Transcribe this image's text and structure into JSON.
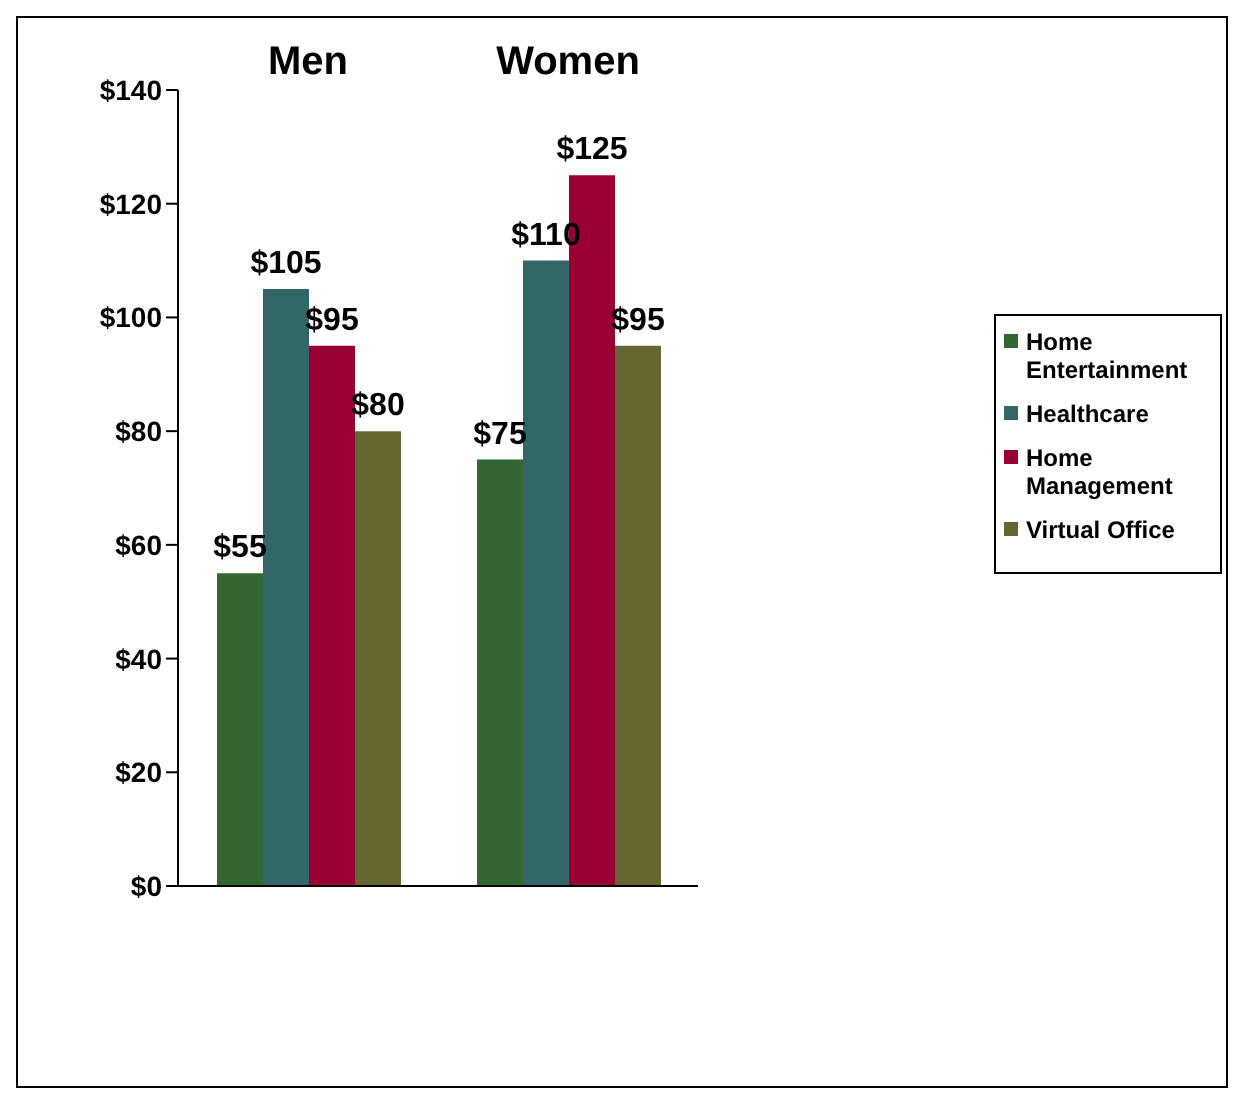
{
  "chart_data": {
    "type": "bar",
    "categories": [
      "Men",
      "Women"
    ],
    "series": [
      {
        "name": "Home Entertainment",
        "color": "#336633",
        "values": [
          55,
          75
        ]
      },
      {
        "name": "Healthcare",
        "color": "#336666",
        "values": [
          105,
          110
        ]
      },
      {
        "name": "Home Management",
        "color": "#990033",
        "values": [
          95,
          125
        ]
      },
      {
        "name": "Virtual Office",
        "color": "#666633",
        "values": [
          80,
          95
        ]
      }
    ],
    "ylim": [
      0,
      140
    ],
    "yticks": [
      {
        "value": 0,
        "label": "$0"
      },
      {
        "value": 20,
        "label": "$20"
      },
      {
        "value": 40,
        "label": "$40"
      },
      {
        "value": 60,
        "label": "$60"
      },
      {
        "value": 80,
        "label": "$80"
      },
      {
        "value": 100,
        "label": "$100"
      },
      {
        "value": 120,
        "label": "$120"
      },
      {
        "value": 140,
        "label": "$140"
      }
    ],
    "value_labels": [
      [
        "$55",
        "$75"
      ],
      [
        "$105",
        "$110"
      ],
      [
        "$95",
        "$125"
      ],
      [
        "$80",
        "$95"
      ]
    ],
    "legend": "right",
    "grid": false
  }
}
